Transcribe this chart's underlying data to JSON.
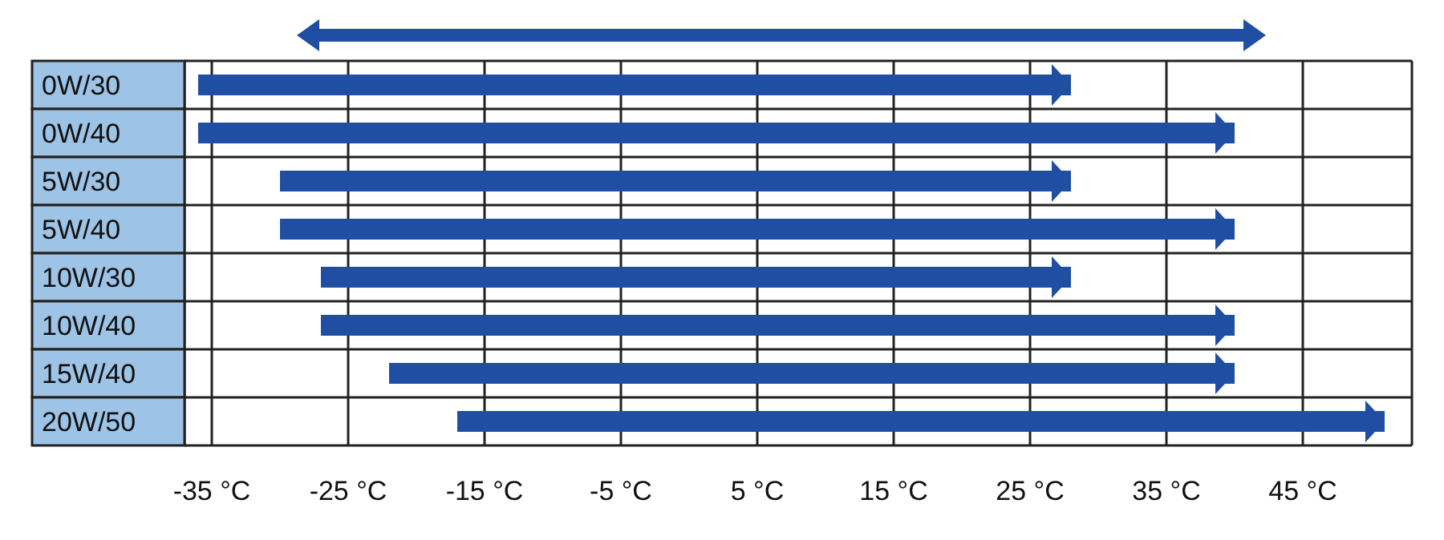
{
  "chart_data": {
    "type": "bar",
    "orientation": "horizontal",
    "categories": [
      "0W/30",
      "0W/40",
      "5W/30",
      "5W/40",
      "10W/30",
      "10W/40",
      "15W/40",
      "20W/50"
    ],
    "base": [
      -36,
      -36,
      -30,
      -30,
      -27,
      -27,
      -22,
      -17
    ],
    "values": [
      64,
      76,
      58,
      70,
      55,
      67,
      62,
      68
    ],
    "color": "#1f4ea3",
    "xlim": [
      -37,
      53
    ],
    "xticks": [
      {
        "value": -35,
        "label": "-35 °C"
      },
      {
        "value": -25,
        "label": "-25 °C"
      },
      {
        "value": -15,
        "label": "-15 °C"
      },
      {
        "value": -5,
        "label": "-5 °C"
      },
      {
        "value": 5,
        "label": "5 °C"
      },
      {
        "value": 15,
        "label": "15 °C"
      },
      {
        "value": 25,
        "label": "25 °C"
      },
      {
        "value": 35,
        "label": "35 °C"
      },
      {
        "value": 45,
        "label": "45 °C"
      }
    ],
    "grid": true
  }
}
